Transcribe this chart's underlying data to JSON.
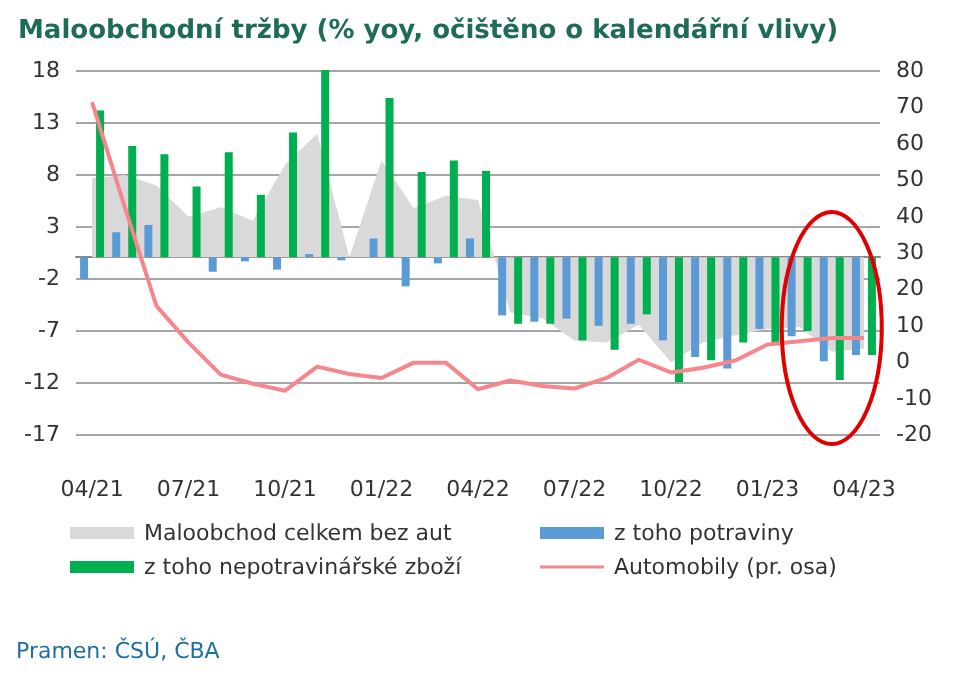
{
  "chart_data": {
    "type": "bar",
    "title": "Maloobchodní tržby (% yoy, očištěno o kalendářní vlivy)",
    "categories": [
      "04/21",
      null,
      null,
      "07/21",
      null,
      null,
      "10/21",
      null,
      null,
      "01/22",
      null,
      null,
      "04/22",
      null,
      null,
      "07/22",
      null,
      null,
      "10/22",
      null,
      null,
      "01/23",
      null,
      null,
      "04/23"
    ],
    "series": [
      {
        "name": "Maloobchod celkem bez aut",
        "type": "area",
        "color": "#d9d9d9",
        "values": [
          7.6,
          7.9,
          6.9,
          3.9,
          4.8,
          3.5,
          8.9,
          11.9,
          0,
          9.3,
          4.7,
          5.9,
          5.5,
          -5.3,
          -5.9,
          -8.0,
          -8.2,
          -6.5,
          -10.1,
          -8.2,
          -7.5,
          -6.9,
          -6.7,
          -9.1,
          -8.8
        ]
      },
      {
        "name": "z toho potraviny",
        "color": "#5b9bd5",
        "values": [
          -2.1,
          2.4,
          3.1,
          0,
          -1.4,
          -0.4,
          -1.2,
          0.3,
          -0.3,
          1.8,
          -2.8,
          -0.6,
          1.8,
          -5.6,
          -6.2,
          -5.9,
          -6.6,
          -6.4,
          -8.0,
          -9.6,
          -10.7,
          -6.9,
          -7.6,
          -10.0,
          -9.4
        ]
      },
      {
        "name": "z toho nepotravinářské zboží",
        "color": "#00b050",
        "values": [
          14.1,
          10.7,
          9.9,
          6.8,
          10.1,
          6.0,
          12.0,
          18.0,
          0,
          15.3,
          8.2,
          9.3,
          8.3,
          -6.4,
          -6.4,
          -8.0,
          -8.9,
          -5.5,
          -12.0,
          -9.9,
          -8.2,
          -8.2,
          -7.1,
          -11.8,
          -9.4
        ]
      },
      {
        "name": "Automobily (pr. osa)",
        "type": "line",
        "axis": "y2",
        "color": "#f4868c",
        "values": [
          71.2,
          42.8,
          15.2,
          5.1,
          -3.7,
          -6.2,
          -8.1,
          -1.5,
          -3.5,
          -4.6,
          -0.4,
          -0.4,
          -7.7,
          -5.3,
          -6.8,
          -7.5,
          -4.6,
          0.4,
          -3.1,
          -1.8,
          0.2,
          4.6,
          5.5,
          6.4,
          6.4
        ]
      }
    ],
    "ylim": [
      -17,
      18
    ],
    "yticks": [
      -17,
      -12,
      -7,
      -2,
      3,
      8,
      13,
      18
    ],
    "y2lim": [
      -20,
      80
    ],
    "y2ticks": [
      -20,
      -10,
      0,
      10,
      20,
      30,
      40,
      50,
      60,
      70,
      80
    ],
    "grid": "y",
    "legend": "bottom",
    "marker": "none",
    "annotations": [
      "Pramen: ČSÚ, ČBA"
    ]
  }
}
